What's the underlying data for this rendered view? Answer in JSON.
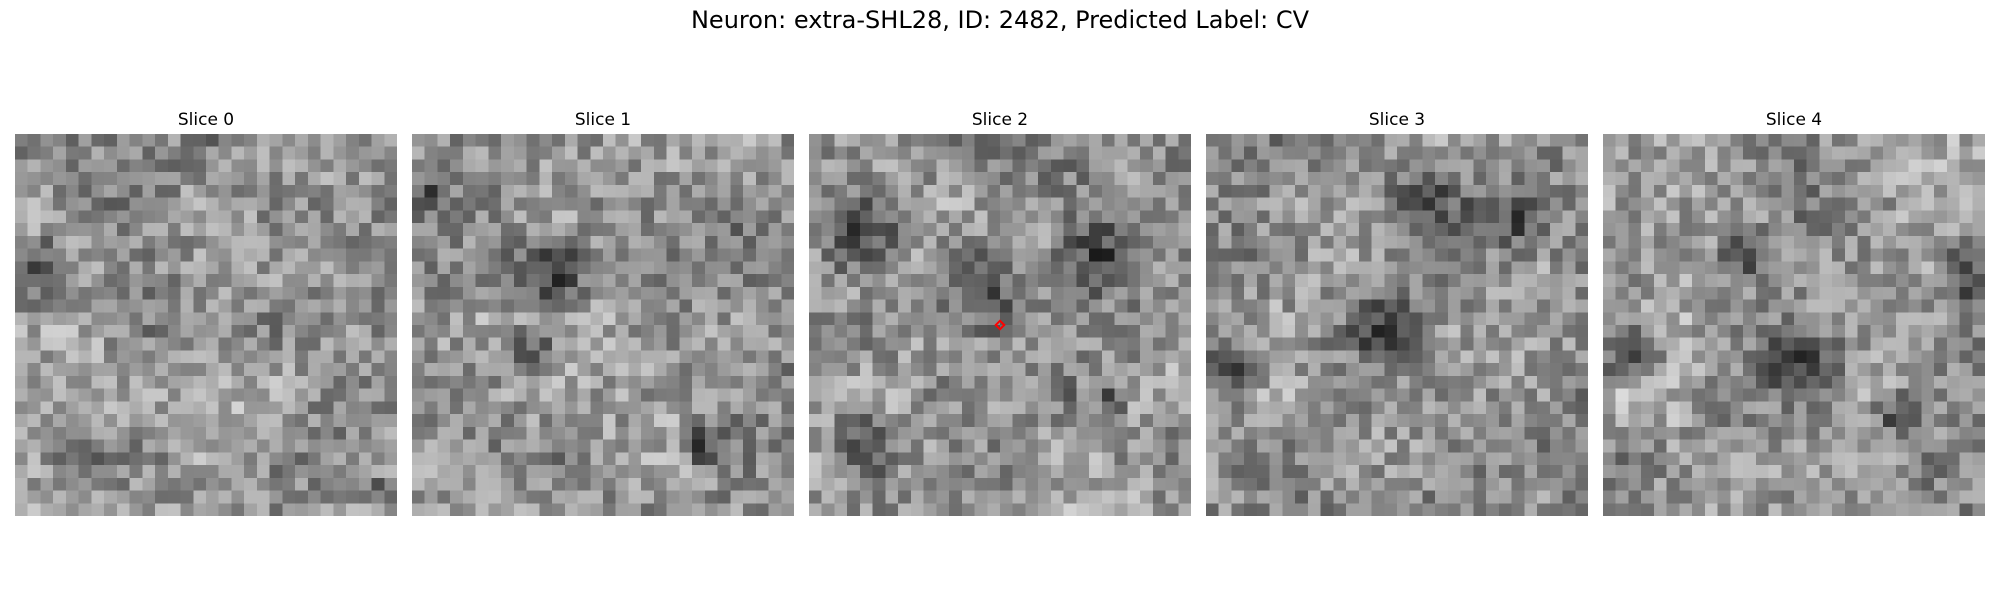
{
  "figure": {
    "title": "Neuron: extra-SHL28, ID: 2482, Predicted Label: CV"
  },
  "slices": [
    {
      "label": "Slice 0",
      "seed": 11,
      "dark_regions": [
        [
          0.05,
          0.35,
          0.12
        ],
        [
          0.95,
          0.92,
          0.06
        ]
      ]
    },
    {
      "label": "Slice 1",
      "seed": 23,
      "dark_regions": [
        [
          0.35,
          0.35,
          0.14
        ],
        [
          0.3,
          0.55,
          0.1
        ],
        [
          0.03,
          0.15,
          0.08
        ],
        [
          0.75,
          0.8,
          0.08
        ]
      ]
    },
    {
      "label": "Slice 2",
      "seed": 37,
      "dark_regions": [
        [
          0.12,
          0.25,
          0.14
        ],
        [
          0.45,
          0.38,
          0.18
        ],
        [
          0.75,
          0.3,
          0.15
        ],
        [
          0.12,
          0.8,
          0.12
        ],
        [
          0.78,
          0.68,
          0.06
        ]
      ]
    },
    {
      "label": "Slice 3",
      "seed": 53,
      "dark_regions": [
        [
          0.55,
          0.15,
          0.14
        ],
        [
          0.8,
          0.2,
          0.12
        ],
        [
          0.45,
          0.5,
          0.12
        ],
        [
          0.05,
          0.6,
          0.1
        ]
      ]
    },
    {
      "label": "Slice 4",
      "seed": 71,
      "dark_regions": [
        [
          0.05,
          0.55,
          0.12
        ],
        [
          0.5,
          0.58,
          0.14
        ],
        [
          0.75,
          0.72,
          0.08
        ],
        [
          0.95,
          0.35,
          0.12
        ],
        [
          0.35,
          0.3,
          0.1
        ]
      ]
    }
  ],
  "marker": {
    "slice_index": 2,
    "color": "#ff0000",
    "shape": "diamond"
  },
  "colormap": "gray"
}
